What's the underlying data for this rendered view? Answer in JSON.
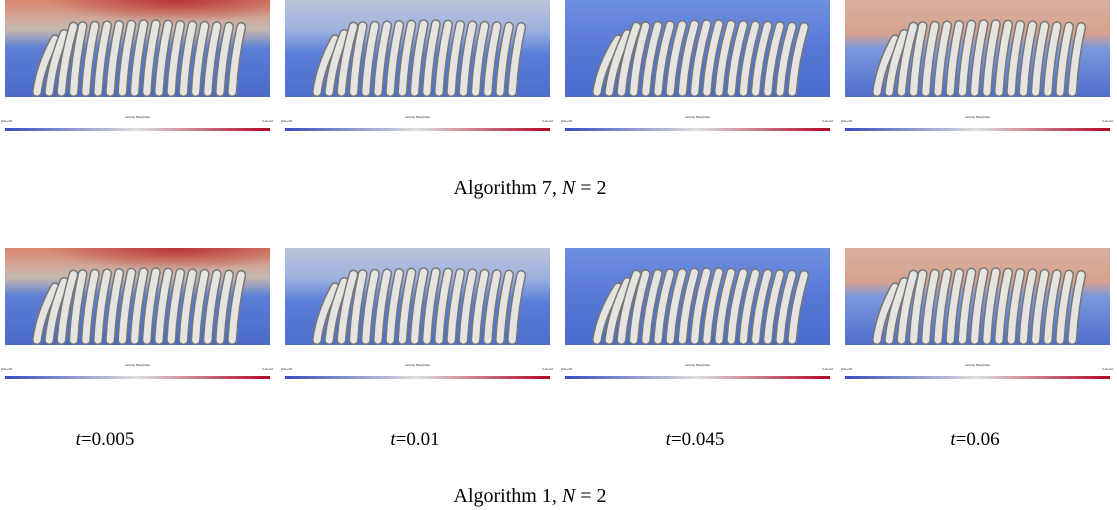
{
  "figure": {
    "colorbar": {
      "min_label": "0.0e+00",
      "title": "velocity Magnitude",
      "max_label": "4.2e+02"
    },
    "rows": [
      {
        "caption": {
          "text": "Algorithm 7, ",
          "var": "N",
          "rest": " = 2"
        }
      },
      {
        "time_labels": [
          {
            "var": "t",
            "text": "=0.005"
          },
          {
            "var": "t",
            "text": "=0.01"
          },
          {
            "var": "t",
            "text": "=0.045"
          },
          {
            "var": "t",
            "text": "=0.06"
          }
        ],
        "caption": {
          "text": "Algorithm 1, ",
          "var": "N",
          "rest": " = 2"
        }
      }
    ]
  }
}
